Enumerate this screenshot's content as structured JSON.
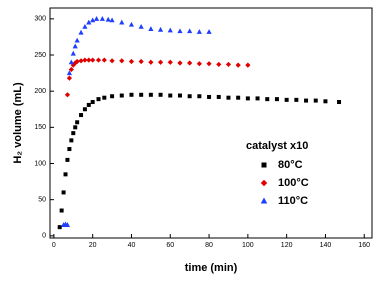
{
  "chart_data": {
    "type": "scatter",
    "x_label": "time (min)",
    "y_label": "H₂ volume (mL)",
    "legend_title": "catalyst x10",
    "xlim": [
      -2,
      164
    ],
    "ylim": [
      -3,
      315
    ],
    "xticks": [
      0,
      20,
      40,
      60,
      80,
      100,
      120,
      140,
      160
    ],
    "yticks": [
      0,
      50,
      100,
      150,
      200,
      250,
      300
    ],
    "series": [
      {
        "name": "80°C",
        "color": "#000000",
        "marker": "square",
        "x": [
          3,
          4,
          5,
          6,
          7,
          8,
          9,
          10,
          11,
          12,
          14,
          16,
          18,
          20,
          23,
          26,
          30,
          35,
          40,
          45,
          50,
          55,
          60,
          65,
          70,
          75,
          80,
          85,
          90,
          95,
          100,
          105,
          110,
          115,
          120,
          125,
          130,
          135,
          140,
          147
        ],
        "y": [
          12,
          35,
          60,
          85,
          105,
          120,
          132,
          142,
          150,
          157,
          167,
          175,
          181,
          185,
          189,
          191,
          193,
          194,
          195,
          195,
          195,
          195,
          194,
          194,
          193,
          193,
          192,
          192,
          191,
          191,
          190,
          190,
          189,
          189,
          188,
          188,
          187,
          187,
          186,
          185
        ]
      },
      {
        "name": "100°C",
        "color": "#e00000",
        "marker": "diamond",
        "x": [
          7,
          8,
          9,
          10,
          11,
          12,
          14,
          16,
          18,
          20,
          23,
          26,
          30,
          35,
          40,
          45,
          50,
          55,
          60,
          65,
          70,
          75,
          80,
          85,
          90,
          95,
          100
        ],
        "y": [
          195,
          218,
          230,
          236,
          239,
          241,
          242,
          243,
          243,
          243,
          243,
          243,
          242,
          242,
          241,
          241,
          240,
          240,
          240,
          239,
          239,
          238,
          238,
          237,
          237,
          236,
          236
        ]
      },
      {
        "name": "110°C",
        "color": "#1f3fff",
        "marker": "triangle",
        "x": [
          5,
          6,
          7,
          8,
          9,
          10,
          11,
          12,
          14,
          16,
          18,
          20,
          22,
          25,
          28,
          30,
          35,
          40,
          45,
          50,
          55,
          60,
          65,
          70,
          75,
          80
        ],
        "y": [
          15,
          16,
          15,
          225,
          240,
          252,
          262,
          270,
          281,
          289,
          295,
          298,
          300,
          300,
          299,
          298,
          295,
          292,
          289,
          286,
          285,
          284,
          283,
          283,
          282,
          282
        ]
      }
    ]
  }
}
